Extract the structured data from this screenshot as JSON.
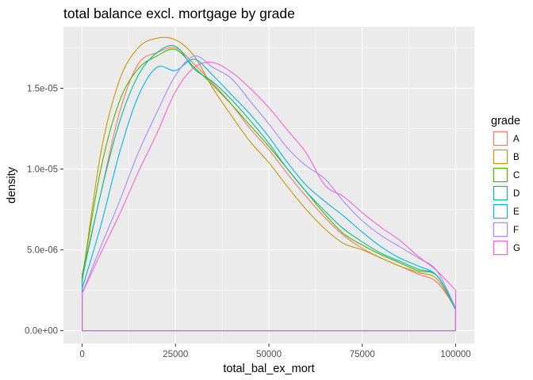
{
  "chart_data": {
    "type": "line",
    "subtype": "density",
    "title": "total balance excl. mortgage by grade",
    "xlabel": "total_bal_ex_mort",
    "ylabel": "density",
    "xlim": [
      -5000,
      105000
    ],
    "ylim": [
      -8e-07,
      1.88e-05
    ],
    "x_ticks": [
      0,
      25000,
      50000,
      75000,
      100000
    ],
    "x_tick_labels": [
      "0",
      "25000",
      "50000",
      "75000",
      "100000"
    ],
    "y_ticks": [
      0,
      5e-06,
      1e-05,
      1.5e-05
    ],
    "y_tick_labels": [
      "0.0e+00",
      "5.0e-06",
      "1.0e-05",
      "1.5e-05"
    ],
    "grid": true,
    "legend": {
      "title": "grade",
      "position": "right"
    },
    "x": [
      0,
      5000,
      10000,
      15000,
      20000,
      25000,
      30000,
      35000,
      40000,
      45000,
      50000,
      55000,
      60000,
      65000,
      70000,
      75000,
      80000,
      85000,
      90000,
      95000,
      100000
    ],
    "series": [
      {
        "name": "A",
        "color": "#F8766D",
        "values": [
          3.5e-06,
          8.5e-06,
          1.35e-05,
          1.65e-05,
          1.72e-05,
          1.75e-05,
          1.65e-05,
          1.53e-05,
          1.4e-05,
          1.25e-05,
          1.12e-05,
          9.7e-06,
          8.3e-06,
          7e-06,
          5.9e-06,
          5.1e-06,
          4.5e-06,
          4e-06,
          3.5e-06,
          3e-06,
          1.4e-06
        ]
      },
      {
        "name": "B",
        "color": "#C49A00",
        "values": [
          3e-06,
          1.1e-05,
          1.55e-05,
          1.75e-05,
          1.81e-05,
          1.8e-05,
          1.7e-05,
          1.5e-05,
          1.33e-05,
          1.17e-05,
          1.04e-05,
          8.9e-06,
          7.5e-06,
          6.3e-06,
          5.4e-06,
          5e-06,
          4.5e-06,
          4e-06,
          3.6e-06,
          3.2e-06,
          1.3e-06
        ]
      },
      {
        "name": "C",
        "color": "#53B400",
        "values": [
          3.3e-06,
          1e-05,
          1.42e-05,
          1.62e-05,
          1.7e-05,
          1.74e-05,
          1.63e-05,
          1.52e-05,
          1.4e-05,
          1.27e-05,
          1.14e-05,
          1e-05,
          8.6e-06,
          7.2e-06,
          6e-06,
          5.3e-06,
          4.7e-06,
          4.2e-06,
          3.7e-06,
          3.4e-06,
          1.4e-06
        ]
      },
      {
        "name": "D",
        "color": "#00C094",
        "values": [
          3.2e-06,
          8.5e-06,
          1.29e-05,
          1.58e-05,
          1.72e-05,
          1.76e-05,
          1.62e-05,
          1.54e-05,
          1.43e-05,
          1.3e-05,
          1.16e-05,
          1e-05,
          8.6e-06,
          7.4e-06,
          6.3e-06,
          5.5e-06,
          4.8e-06,
          4.3e-06,
          3.8e-06,
          3.4e-06,
          1.3e-06
        ]
      },
      {
        "name": "E",
        "color": "#00B6EB",
        "values": [
          2.6e-06,
          6.5e-06,
          1.1e-05,
          1.45e-05,
          1.63e-05,
          1.61e-05,
          1.68e-05,
          1.58e-05,
          1.46e-05,
          1.34e-05,
          1.2e-05,
          1.04e-05,
          9e-06,
          8e-06,
          7.1e-06,
          6.1e-06,
          5.2e-06,
          4.5e-06,
          4e-06,
          3.4e-06,
          1.4e-06
        ]
      },
      {
        "name": "F",
        "color": "#A58AFF",
        "values": [
          2.3e-06,
          5.2e-06,
          8e-06,
          1.1e-05,
          1.35e-05,
          1.58e-05,
          1.7e-05,
          1.63e-05,
          1.56e-05,
          1.42e-05,
          1.28e-05,
          1.13e-05,
          1.02e-05,
          9.4e-06,
          8e-06,
          6.8e-06,
          5.9e-06,
          5.2e-06,
          4.5e-06,
          3.7e-06,
          1.4e-06
        ]
      },
      {
        "name": "G",
        "color": "#FB61D7",
        "values": [
          2.3e-06,
          4.8e-06,
          7.2e-06,
          9.8e-06,
          1.22e-05,
          1.48e-05,
          1.63e-05,
          1.66e-05,
          1.6e-05,
          1.5e-05,
          1.38e-05,
          1.24e-05,
          1.1e-05,
          9e-06,
          8.3e-06,
          7.3e-06,
          6.4e-06,
          5.6e-06,
          4.6e-06,
          3.7e-06,
          2.5e-06
        ]
      }
    ]
  }
}
